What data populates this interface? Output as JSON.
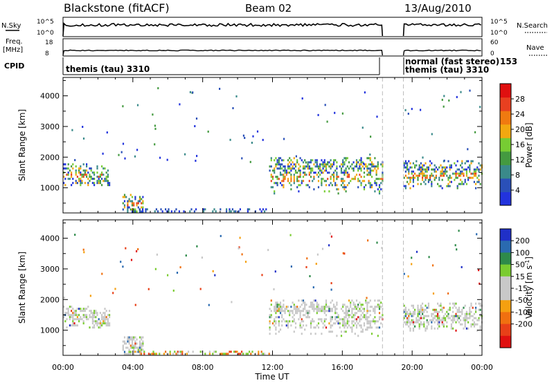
{
  "header": {
    "station": "Blackstone (fitACF)",
    "beam": "Beam 02",
    "date": "13/Aug/2010"
  },
  "status_panels": {
    "nsky": {
      "label": "N.Sky",
      "ticks": [
        "10^5",
        "10^0"
      ]
    },
    "nsearch": {
      "label": "N.Search",
      "ticks": [
        "10^5",
        "10^0"
      ]
    },
    "freq": {
      "label_line1": "Freq.",
      "label_line2": "[MHz]",
      "ticks": [
        "18",
        "8"
      ]
    },
    "nave": {
      "label": "Nave",
      "ticks": [
        "60",
        "0"
      ]
    },
    "cpid": {
      "label": "CPID",
      "mode1": "themis (tau) 3310",
      "mode2_line1": "normal (fast stereo)",
      "mode2_line2": "themis (tau) 3310",
      "mode2_number": "153"
    }
  },
  "chart_data": [
    {
      "type": "heatmap",
      "title": "",
      "xlabel": "Time UT",
      "ylabel": "Slant Range [km]",
      "x_range_hours": [
        0,
        24
      ],
      "y_range_km": [
        180,
        4600
      ],
      "x_ticks": [
        "00:00",
        "04:00",
        "08:00",
        "12:00",
        "16:00",
        "20:00",
        "00:00"
      ],
      "y_ticks": [
        "1000",
        "2000",
        "3000",
        "4000"
      ],
      "colorbar": {
        "label": "Power [dB]",
        "ticks": [
          "4",
          "8",
          "12",
          "16",
          "20",
          "24",
          "28"
        ],
        "colors": [
          "#2233dd",
          "#2a50b8",
          "#3a8a8a",
          "#449a40",
          "#77cc33",
          "#f2a810",
          "#f07a10",
          "#e84020",
          "#e01010"
        ]
      },
      "gaps_hours": [
        [
          18.3,
          19.5
        ]
      ],
      "regions": [
        {
          "t": [
            0.0,
            2.7
          ],
          "r": [
            1100,
            1800
          ],
          "level": "mixed high"
        },
        {
          "t": [
            3.4,
            4.6
          ],
          "r": [
            200,
            800
          ],
          "level": "mixed"
        },
        {
          "t": [
            4.0,
            11.8
          ],
          "r": [
            200,
            330
          ],
          "level": "low"
        },
        {
          "t": [
            11.8,
            18.3
          ],
          "r": [
            800,
            2000
          ],
          "level": "mixed high"
        },
        {
          "t": [
            19.5,
            24.0
          ],
          "r": [
            1000,
            1900
          ],
          "level": "mixed"
        }
      ]
    },
    {
      "type": "heatmap",
      "title": "",
      "xlabel": "Time UT",
      "ylabel": "Slant Range [km]",
      "x_range_hours": [
        0,
        24
      ],
      "y_range_km": [
        180,
        4600
      ],
      "x_ticks": [
        "00:00",
        "04:00",
        "08:00",
        "12:00",
        "16:00",
        "20:00",
        "00:00"
      ],
      "y_ticks": [
        "1000",
        "2000",
        "3000",
        "4000"
      ],
      "colorbar": {
        "label": "Velocity [m s^-1]",
        "ticks": [
          "200",
          "100",
          "50",
          "15",
          "-15",
          "-50",
          "-100",
          "-200"
        ],
        "colors": [
          "#2030c8",
          "#2a6ab0",
          "#2e8a4a",
          "#7acc30",
          "#c8c8c8",
          "#c8c8c8",
          "#f5a010",
          "#f07010",
          "#e84018",
          "#e01010"
        ]
      },
      "gaps_hours": [
        [
          18.3,
          19.5
        ]
      ],
      "regions": [
        {
          "t": [
            0.0,
            2.7
          ],
          "r": [
            1100,
            1800
          ],
          "level": "ground scatter"
        },
        {
          "t": [
            3.4,
            4.6
          ],
          "r": [
            200,
            800
          ],
          "level": "ground scatter"
        },
        {
          "t": [
            4.0,
            11.8
          ],
          "r": [
            200,
            330
          ],
          "level": "negative"
        },
        {
          "t": [
            11.8,
            18.3
          ],
          "r": [
            800,
            2000
          ],
          "level": "ground scatter"
        },
        {
          "t": [
            19.5,
            24.0
          ],
          "r": [
            1000,
            1900
          ],
          "level": "ground scatter"
        }
      ]
    }
  ]
}
